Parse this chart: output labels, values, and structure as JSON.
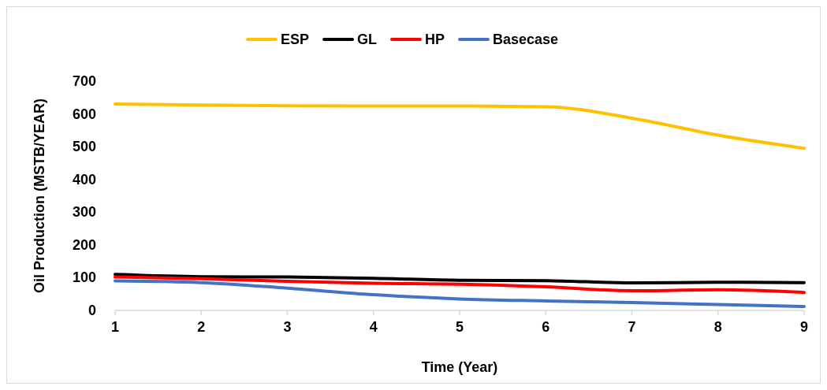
{
  "chart_data": {
    "type": "line",
    "xlabel": "Time (Year)",
    "ylabel": "Oil Production (MSTB/YEAR)",
    "x": [
      1,
      2,
      3,
      4,
      5,
      6,
      7,
      8,
      9
    ],
    "xlim": [
      1,
      9
    ],
    "xticks": [
      1,
      2,
      3,
      4,
      5,
      6,
      7,
      8,
      9
    ],
    "ylim": [
      0,
      700
    ],
    "yticks": [
      0,
      100,
      200,
      300,
      400,
      500,
      600,
      700
    ],
    "grid": false,
    "legend": "top",
    "line_style": "solid",
    "series": [
      {
        "name": "ESP",
        "color": "#ffc000",
        "values": [
          630,
          627,
          625,
          624,
          624,
          622,
          587,
          535,
          495
        ]
      },
      {
        "name": "GL",
        "color": "#000000",
        "values": [
          110,
          103,
          102,
          98,
          92,
          91,
          84,
          86,
          85
        ]
      },
      {
        "name": "HP",
        "color": "#ff0000",
        "values": [
          102,
          97,
          89,
          83,
          80,
          72,
          60,
          63,
          55
        ]
      },
      {
        "name": "Basecase",
        "color": "#4472c4",
        "values": [
          90,
          85,
          68,
          48,
          35,
          29,
          24,
          18,
          12
        ]
      }
    ]
  }
}
